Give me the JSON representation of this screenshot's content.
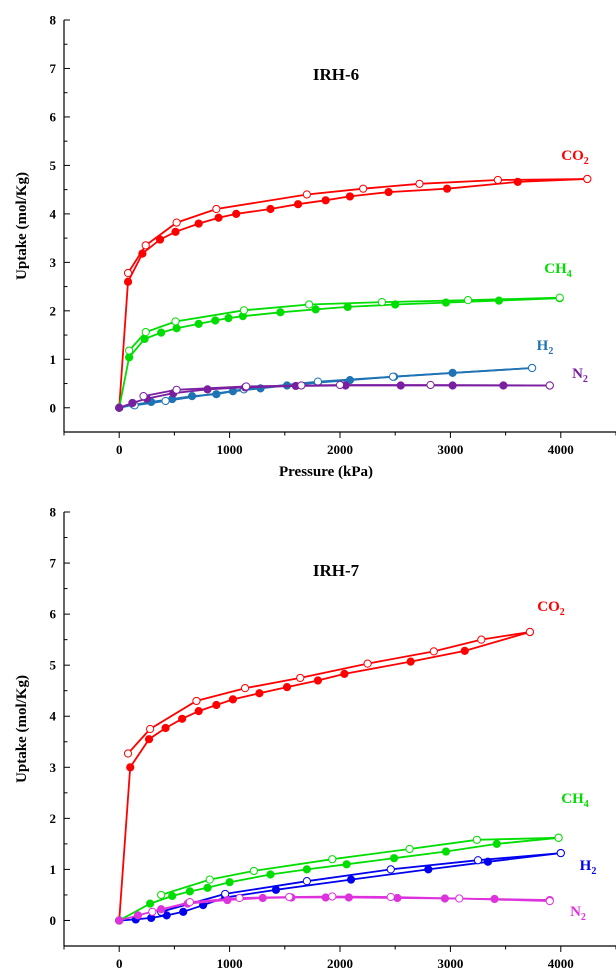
{
  "chart_data": [
    {
      "type": "line",
      "title": "IRH-6",
      "xlabel": "Pressure (kPa)",
      "ylabel": "Uptake (mol/Kg)",
      "xlim": [
        -500,
        4500
      ],
      "ylim": [
        -0.5,
        8
      ],
      "x_ticks": [
        0,
        1000,
        2000,
        3000,
        4000
      ],
      "y_ticks": [
        0,
        1,
        2,
        3,
        4,
        5,
        6,
        7,
        8
      ],
      "series": [
        {
          "id": "co2",
          "label_main": "CO",
          "label_sub": "2",
          "color": "#ff0000",
          "adsorption": [
            [
              0,
              0
            ],
            [
              80,
              2.6
            ],
            [
              210,
              3.18
            ],
            [
              370,
              3.47
            ],
            [
              510,
              3.63
            ],
            [
              720,
              3.8
            ],
            [
              900,
              3.92
            ],
            [
              1060,
              4.0
            ],
            [
              1370,
              4.1
            ],
            [
              1620,
              4.2
            ],
            [
              1870,
              4.28
            ],
            [
              2090,
              4.36
            ],
            [
              2440,
              4.45
            ],
            [
              2970,
              4.52
            ],
            [
              3610,
              4.66
            ],
            [
              4240,
              4.72
            ]
          ],
          "desorption": [
            [
              4240,
              4.72
            ],
            [
              3430,
              4.7
            ],
            [
              2720,
              4.62
            ],
            [
              2210,
              4.52
            ],
            [
              1700,
              4.4
            ],
            [
              880,
              4.1
            ],
            [
              520,
              3.82
            ],
            [
              240,
              3.35
            ],
            [
              80,
              2.78
            ]
          ]
        },
        {
          "id": "ch4",
          "label_main": "CH",
          "label_sub": "4",
          "color": "#00dd00",
          "adsorption": [
            [
              0,
              0
            ],
            [
              90,
              1.04
            ],
            [
              230,
              1.42
            ],
            [
              380,
              1.55
            ],
            [
              520,
              1.64
            ],
            [
              720,
              1.73
            ],
            [
              870,
              1.8
            ],
            [
              990,
              1.85
            ],
            [
              1120,
              1.89
            ],
            [
              1460,
              1.97
            ],
            [
              1780,
              2.03
            ],
            [
              2070,
              2.08
            ],
            [
              2500,
              2.13
            ],
            [
              2960,
              2.17
            ],
            [
              3440,
              2.21
            ],
            [
              3990,
              2.26
            ]
          ],
          "desorption": [
            [
              3990,
              2.27
            ],
            [
              3160,
              2.22
            ],
            [
              2380,
              2.18
            ],
            [
              1720,
              2.13
            ],
            [
              1130,
              2.01
            ],
            [
              510,
              1.78
            ],
            [
              240,
              1.56
            ],
            [
              90,
              1.18
            ]
          ]
        },
        {
          "id": "h2",
          "label_main": "H",
          "label_sub": "2",
          "color": "#1e73b4",
          "adsorption": [
            [
              0,
              0
            ],
            [
              130,
              0.06
            ],
            [
              290,
              0.12
            ],
            [
              480,
              0.18
            ],
            [
              660,
              0.24
            ],
            [
              880,
              0.28
            ],
            [
              1030,
              0.34
            ],
            [
              1280,
              0.4
            ],
            [
              1520,
              0.46
            ],
            [
              1800,
              0.52
            ],
            [
              2090,
              0.57
            ],
            [
              2490,
              0.64
            ],
            [
              3020,
              0.72
            ],
            [
              3740,
              0.82
            ]
          ],
          "desorption": [
            [
              3740,
              0.82
            ],
            [
              2480,
              0.64
            ],
            [
              1800,
              0.54
            ],
            [
              1130,
              0.38
            ],
            [
              420,
              0.14
            ],
            [
              140,
              0.05
            ]
          ]
        },
        {
          "id": "n2",
          "label_main": "N",
          "label_sub": "2",
          "color": "#7a1fa0",
          "adsorption": [
            [
              0,
              0
            ],
            [
              120,
              0.1
            ],
            [
              250,
              0.19
            ],
            [
              490,
              0.3
            ],
            [
              800,
              0.38
            ],
            [
              1140,
              0.42
            ],
            [
              1600,
              0.45
            ],
            [
              2050,
              0.46
            ],
            [
              2550,
              0.46
            ],
            [
              3020,
              0.46
            ],
            [
              3480,
              0.46
            ],
            [
              3900,
              0.46
            ]
          ],
          "desorption": [
            [
              3900,
              0.46
            ],
            [
              2820,
              0.47
            ],
            [
              2000,
              0.47
            ],
            [
              1650,
              0.46
            ],
            [
              1150,
              0.44
            ],
            [
              520,
              0.37
            ],
            [
              220,
              0.24
            ]
          ]
        }
      ]
    },
    {
      "type": "line",
      "title": "IRH-7",
      "xlabel": "Pressure (kPa)",
      "ylabel": "Uptake (mol/Kg)",
      "xlim": [
        -500,
        4500
      ],
      "ylim": [
        -0.5,
        8
      ],
      "x_ticks": [
        0,
        1000,
        2000,
        3000,
        4000
      ],
      "y_ticks": [
        0,
        1,
        2,
        3,
        4,
        5,
        6,
        7,
        8
      ],
      "series": [
        {
          "id": "co2",
          "label_main": "CO",
          "label_sub": "2",
          "color": "#ff0000",
          "adsorption": [
            [
              0,
              0
            ],
            [
              100,
              3.0
            ],
            [
              270,
              3.55
            ],
            [
              420,
              3.77
            ],
            [
              570,
              3.95
            ],
            [
              720,
              4.1
            ],
            [
              880,
              4.22
            ],
            [
              1030,
              4.33
            ],
            [
              1270,
              4.45
            ],
            [
              1520,
              4.57
            ],
            [
              1800,
              4.7
            ],
            [
              2040,
              4.83
            ],
            [
              2640,
              5.07
            ],
            [
              3130,
              5.28
            ],
            [
              3720,
              5.65
            ]
          ],
          "desorption": [
            [
              3720,
              5.65
            ],
            [
              3280,
              5.5
            ],
            [
              2850,
              5.27
            ],
            [
              2250,
              5.03
            ],
            [
              1640,
              4.75
            ],
            [
              1140,
              4.55
            ],
            [
              700,
              4.3
            ],
            [
              280,
              3.75
            ],
            [
              80,
              3.27
            ]
          ]
        },
        {
          "id": "ch4",
          "label_main": "CH",
          "label_sub": "4",
          "color": "#00dd00",
          "adsorption": [
            [
              0,
              0
            ],
            [
              280,
              0.33
            ],
            [
              480,
              0.48
            ],
            [
              640,
              0.57
            ],
            [
              800,
              0.64
            ],
            [
              1000,
              0.75
            ],
            [
              1370,
              0.9
            ],
            [
              1700,
              1.0
            ],
            [
              2060,
              1.1
            ],
            [
              2490,
              1.22
            ],
            [
              2960,
              1.35
            ],
            [
              3420,
              1.5
            ],
            [
              3980,
              1.62
            ]
          ],
          "desorption": [
            [
              3980,
              1.62
            ],
            [
              3240,
              1.58
            ],
            [
              2630,
              1.4
            ],
            [
              1930,
              1.2
            ],
            [
              1220,
              0.97
            ],
            [
              820,
              0.8
            ],
            [
              380,
              0.5
            ]
          ]
        },
        {
          "id": "h2",
          "label_main": "H",
          "label_sub": "2",
          "color": "#0000ee",
          "adsorption": [
            [
              0,
              0
            ],
            [
              150,
              0.02
            ],
            [
              290,
              0.05
            ],
            [
              430,
              0.1
            ],
            [
              580,
              0.17
            ],
            [
              760,
              0.3
            ],
            [
              960,
              0.45
            ],
            [
              1420,
              0.6
            ],
            [
              2100,
              0.8
            ],
            [
              2800,
              1.0
            ],
            [
              3340,
              1.15
            ],
            [
              4000,
              1.32
            ]
          ],
          "desorption": [
            [
              4000,
              1.32
            ],
            [
              3250,
              1.18
            ],
            [
              2460,
              1.0
            ],
            [
              1700,
              0.77
            ],
            [
              960,
              0.52
            ],
            [
              380,
              0.17
            ]
          ]
        },
        {
          "id": "n2",
          "label_main": "N",
          "label_sub": "2",
          "color": "#dd33dd",
          "adsorption": [
            [
              0,
              0
            ],
            [
              170,
              0.1
            ],
            [
              380,
              0.22
            ],
            [
              620,
              0.33
            ],
            [
              980,
              0.4
            ],
            [
              1300,
              0.44
            ],
            [
              1560,
              0.45
            ],
            [
              1870,
              0.45
            ],
            [
              2080,
              0.45
            ],
            [
              2520,
              0.44
            ],
            [
              2950,
              0.43
            ],
            [
              3400,
              0.42
            ],
            [
              3900,
              0.4
            ]
          ],
          "desorption": [
            [
              3900,
              0.38
            ],
            [
              3080,
              0.43
            ],
            [
              2460,
              0.46
            ],
            [
              1930,
              0.47
            ],
            [
              1540,
              0.46
            ],
            [
              1090,
              0.44
            ],
            [
              640,
              0.36
            ],
            [
              300,
              0.17
            ]
          ]
        }
      ]
    }
  ]
}
